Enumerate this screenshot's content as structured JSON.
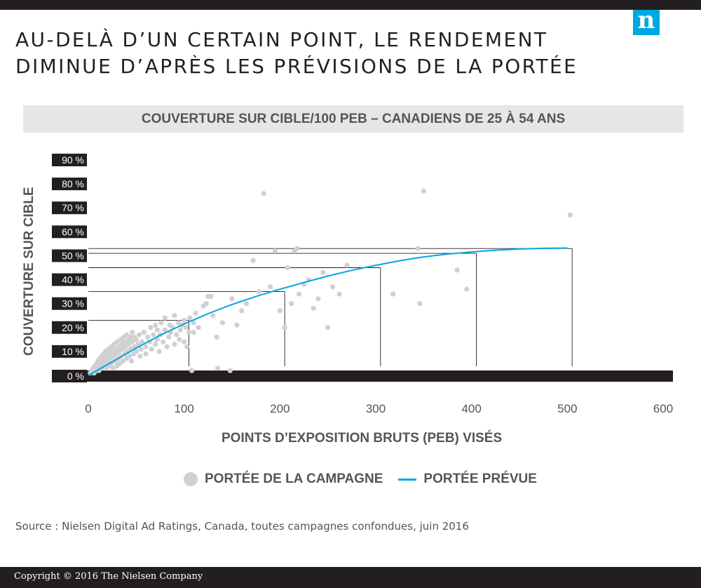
{
  "header": {
    "title_line1": "AU-DELÀ D’UN CERTAIN POINT, LE RENDEMENT",
    "title_line2": "DIMINUE D’APRÈS LES PRÉVISIONS DE LA PORTÉE",
    "logo_letter": "n"
  },
  "colors": {
    "dark": "#231f20",
    "accent_blue": "#00a8e1",
    "point_gray": "#d0d0d2",
    "band_gray": "#e6e6e7",
    "text_gray": "#555555"
  },
  "chart_data": {
    "type": "scatter",
    "title": "COUVERTURE SUR CIBLE/100 PEB –  CANADIENS DE 25 À 54 ANS",
    "xlabel": "POINTS D’EXPOSITION BRUTS (PEB) VISÉS",
    "ylabel": "COUVERTURE SUR CIBLE",
    "xlim": [
      0,
      600
    ],
    "ylim": [
      0,
      90
    ],
    "x_ticks": [
      "0",
      "100",
      "200",
      "300",
      "400",
      "500",
      "600"
    ],
    "y_ticks": [
      "0 %",
      "10 %",
      "20 %",
      "30 %",
      "40 %",
      "50 %",
      "60 %",
      "70 %",
      "80 %",
      "90 %"
    ],
    "grid": false,
    "legend_position": "bottom",
    "series": [
      {
        "name": "PORTÉE DE LA CAMPAGNE",
        "kind": "scatter",
        "color": "#d0d0d2",
        "points": [
          [
            2,
            1
          ],
          [
            4,
            2
          ],
          [
            5,
            3
          ],
          [
            6,
            1
          ],
          [
            7,
            4
          ],
          [
            8,
            2
          ],
          [
            9,
            5
          ],
          [
            10,
            3
          ],
          [
            10,
            6
          ],
          [
            11,
            2
          ],
          [
            12,
            4
          ],
          [
            12,
            7
          ],
          [
            13,
            5
          ],
          [
            14,
            3
          ],
          [
            14,
            8
          ],
          [
            15,
            6
          ],
          [
            16,
            4
          ],
          [
            16,
            9
          ],
          [
            17,
            7
          ],
          [
            18,
            5
          ],
          [
            18,
            10
          ],
          [
            19,
            3
          ],
          [
            20,
            8
          ],
          [
            20,
            6
          ],
          [
            21,
            11
          ],
          [
            22,
            4
          ],
          [
            22,
            9
          ],
          [
            23,
            7
          ],
          [
            24,
            12
          ],
          [
            24,
            5
          ],
          [
            25,
            10
          ],
          [
            26,
            8
          ],
          [
            26,
            3
          ],
          [
            27,
            13
          ],
          [
            28,
            6
          ],
          [
            28,
            11
          ],
          [
            29,
            9
          ],
          [
            30,
            4
          ],
          [
            30,
            14
          ],
          [
            31,
            7
          ],
          [
            32,
            12
          ],
          [
            32,
            10
          ],
          [
            33,
            5
          ],
          [
            34,
            15
          ],
          [
            34,
            8
          ],
          [
            35,
            13
          ],
          [
            36,
            11
          ],
          [
            36,
            6
          ],
          [
            37,
            16
          ],
          [
            38,
            9
          ],
          [
            38,
            14
          ],
          [
            39,
            12
          ],
          [
            40,
            7
          ],
          [
            40,
            17
          ],
          [
            41,
            10
          ],
          [
            42,
            15
          ],
          [
            42,
            13
          ],
          [
            43,
            8
          ],
          [
            44,
            16
          ],
          [
            44,
            11
          ],
          [
            45,
            6
          ],
          [
            46,
            14
          ],
          [
            46,
            18
          ],
          [
            47,
            9
          ],
          [
            48,
            12
          ],
          [
            48,
            16
          ],
          [
            50,
            10
          ],
          [
            50,
            15
          ],
          [
            52,
            13
          ],
          [
            53,
            17
          ],
          [
            54,
            8
          ],
          [
            55,
            11
          ],
          [
            56,
            14
          ],
          [
            58,
            18
          ],
          [
            60,
            12
          ],
          [
            60,
            9
          ],
          [
            62,
            16
          ],
          [
            64,
            14
          ],
          [
            65,
            20
          ],
          [
            66,
            11
          ],
          [
            68,
            17
          ],
          [
            70,
            13
          ],
          [
            70,
            21
          ],
          [
            72,
            15
          ],
          [
            72,
            19
          ],
          [
            74,
            10
          ],
          [
            75,
            17
          ],
          [
            76,
            22
          ],
          [
            78,
            14
          ],
          [
            80,
            19
          ],
          [
            80,
            24
          ],
          [
            82,
            12
          ],
          [
            84,
            16
          ],
          [
            85,
            21
          ],
          [
            86,
            18
          ],
          [
            88,
            20
          ],
          [
            90,
            13
          ],
          [
            90,
            25
          ],
          [
            92,
            17
          ],
          [
            94,
            22
          ],
          [
            95,
            15
          ],
          [
            96,
            19
          ],
          [
            98,
            21
          ],
          [
            100,
            14
          ],
          [
            100,
            23
          ],
          [
            102,
            20
          ],
          [
            103,
            12
          ],
          [
            105,
            18
          ],
          [
            106,
            24
          ],
          [
            108,
            2
          ],
          [
            110,
            22
          ],
          [
            110,
            18
          ],
          [
            112,
            26
          ],
          [
            115,
            20
          ],
          [
            120,
            29
          ],
          [
            123,
            30
          ],
          [
            125,
            33
          ],
          [
            128,
            33
          ],
          [
            130,
            25
          ],
          [
            134,
            16
          ],
          [
            135,
            3
          ],
          [
            140,
            22
          ],
          [
            148,
            2
          ],
          [
            150,
            32
          ],
          [
            155,
            21
          ],
          [
            160,
            27
          ],
          [
            165,
            30
          ],
          [
            172,
            48
          ],
          [
            178,
            35
          ],
          [
            183,
            76
          ],
          [
            190,
            37
          ],
          [
            195,
            52
          ],
          [
            200,
            27
          ],
          [
            205,
            20
          ],
          [
            208,
            45
          ],
          [
            212,
            30
          ],
          [
            215,
            52
          ],
          [
            218,
            53
          ],
          [
            220,
            34
          ],
          [
            225,
            38
          ],
          [
            230,
            40
          ],
          [
            235,
            28
          ],
          [
            240,
            32
          ],
          [
            245,
            43
          ],
          [
            250,
            20
          ],
          [
            255,
            37
          ],
          [
            262,
            34
          ],
          [
            270,
            46
          ],
          [
            318,
            34
          ],
          [
            344,
            53
          ],
          [
            346,
            30
          ],
          [
            350,
            77
          ],
          [
            385,
            44
          ],
          [
            395,
            36
          ],
          [
            503,
            67
          ]
        ]
      },
      {
        "name": "PORTÉE PRÉVUE",
        "kind": "line",
        "color": "#00a8e1",
        "points": [
          [
            0,
            0
          ],
          [
            25,
            5.7
          ],
          [
            50,
            11.4
          ],
          [
            75,
            16.8
          ],
          [
            100,
            21.5
          ],
          [
            125,
            25.8
          ],
          [
            150,
            29.6
          ],
          [
            175,
            33.0
          ],
          [
            200,
            36.0
          ],
          [
            225,
            38.8
          ],
          [
            250,
            41.5
          ],
          [
            275,
            43.9
          ],
          [
            300,
            46.0
          ],
          [
            325,
            47.9
          ],
          [
            350,
            49.5
          ],
          [
            375,
            50.7
          ],
          [
            400,
            51.6
          ],
          [
            425,
            52.3
          ],
          [
            450,
            52.8
          ],
          [
            475,
            53.1
          ],
          [
            500,
            53.2
          ]
        ]
      }
    ],
    "reference_lines": [
      {
        "x": 105,
        "y": 23
      },
      {
        "x": 205,
        "y": 35
      },
      {
        "x": 305,
        "y": 45
      },
      {
        "x": 405,
        "y": 51
      },
      {
        "x": 505,
        "y": 53
      }
    ]
  },
  "footer": {
    "source": "Source : Nielsen Digital Ad Ratings, Canada, toutes campagnes confondues, juin 2016",
    "copyright": "Copyright © 2016 The Nielsen Company"
  }
}
